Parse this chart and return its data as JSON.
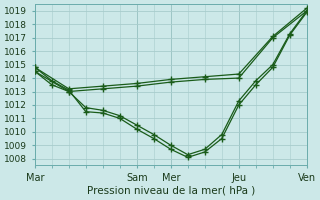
{
  "xlabel": "Pression niveau de la mer( hPa )",
  "background_color": "#cce8e8",
  "grid_color": "#a8cccc",
  "line_color": "#1a5c1a",
  "ylim": [
    1007.5,
    1019.5
  ],
  "yticks": [
    1008,
    1009,
    1010,
    1011,
    1012,
    1013,
    1014,
    1015,
    1016,
    1017,
    1018,
    1019
  ],
  "xtick_labels": [
    "Mar",
    "Sam",
    "Mer",
    "Jeu",
    "Ven"
  ],
  "xtick_positions": [
    0,
    36,
    48,
    72,
    96
  ],
  "xlim": [
    0,
    96
  ],
  "minor_x_step": 6,
  "lines": [
    {
      "x": [
        0,
        6,
        12,
        18,
        24,
        30,
        36,
        42,
        48,
        54,
        60,
        66,
        72,
        78,
        84,
        90,
        96
      ],
      "y": [
        1014.8,
        1013.8,
        1013.1,
        1011.5,
        1011.4,
        1011.0,
        1010.2,
        1009.5,
        1008.7,
        1008.1,
        1008.5,
        1009.5,
        1012.0,
        1013.5,
        1014.8,
        1017.2,
        1018.9
      ]
    },
    {
      "x": [
        0,
        6,
        12,
        18,
        24,
        30,
        36,
        42,
        48,
        54,
        60,
        66,
        72,
        78,
        84,
        90,
        96
      ],
      "y": [
        1014.5,
        1013.5,
        1013.0,
        1011.8,
        1011.6,
        1011.2,
        1010.5,
        1009.8,
        1009.0,
        1008.3,
        1008.7,
        1009.8,
        1012.3,
        1013.8,
        1015.0,
        1017.3,
        1019.0
      ]
    },
    {
      "x": [
        0,
        12,
        24,
        36,
        48,
        60,
        72,
        84,
        96
      ],
      "y": [
        1014.8,
        1013.2,
        1013.4,
        1013.6,
        1013.9,
        1014.1,
        1014.3,
        1017.1,
        1019.2
      ]
    },
    {
      "x": [
        0,
        12,
        24,
        36,
        48,
        60,
        72,
        84,
        96
      ],
      "y": [
        1014.5,
        1013.0,
        1013.2,
        1013.4,
        1013.7,
        1013.9,
        1014.0,
        1017.0,
        1019.0
      ]
    }
  ]
}
